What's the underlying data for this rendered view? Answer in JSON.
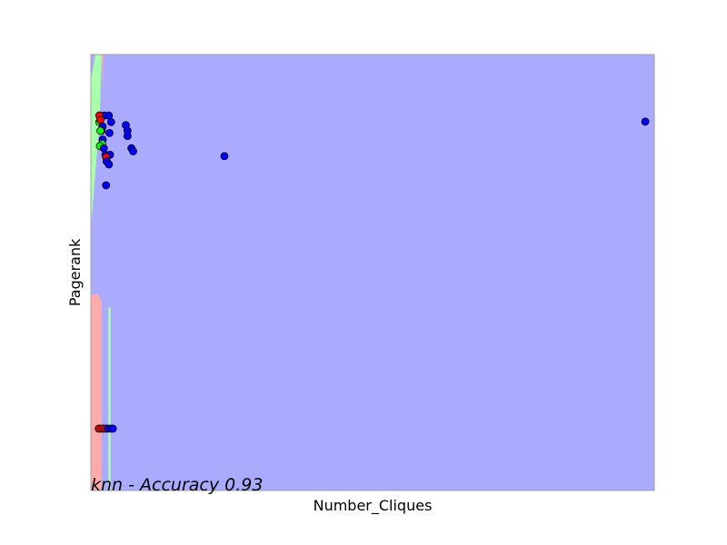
{
  "chart_data": {
    "type": "scatter",
    "title": "",
    "xlabel": "Number_Cliques",
    "ylabel": "Pagerank",
    "annotation": "knn - Accuracy 0.93",
    "xlim": [
      0,
      100
    ],
    "ylim": [
      0,
      100
    ],
    "ticks_visible": false,
    "grid": false,
    "legend": "none",
    "class_colors": {
      "red": {
        "region": "#ffaaaa",
        "point": "#ff0000"
      },
      "green": {
        "region": "#aaffaa",
        "point": "#00ff00"
      },
      "blue": {
        "region": "#aaaaff",
        "point": "#0000ff"
      }
    },
    "regions": [
      {
        "class": "blue",
        "polygon": [
          [
            0,
            0
          ],
          [
            100,
            0
          ],
          [
            100,
            100
          ],
          [
            0,
            100
          ]
        ]
      },
      {
        "class": "green",
        "polygon": [
          [
            0.8,
            100
          ],
          [
            1.9,
            100
          ],
          [
            1.6,
            86
          ],
          [
            0,
            60
          ],
          [
            0,
            94
          ]
        ]
      },
      {
        "class": "red",
        "polygon": [
          [
            1.9,
            100
          ],
          [
            2.2,
            100
          ],
          [
            2.1,
            91
          ]
        ]
      },
      {
        "class": "red",
        "polygon": [
          [
            0,
            45
          ],
          [
            1.3,
            45
          ],
          [
            1.9,
            43.3
          ],
          [
            1.9,
            0
          ],
          [
            0,
            0
          ]
        ]
      },
      {
        "class": "green",
        "polygon": [
          [
            3.1,
            42
          ],
          [
            3.5,
            42
          ],
          [
            3.5,
            0
          ],
          [
            3.1,
            0
          ]
        ]
      }
    ],
    "points": [
      {
        "x": 1.6,
        "y": 86,
        "class": "blue"
      },
      {
        "x": 2.4,
        "y": 86,
        "class": "blue"
      },
      {
        "x": 3.2,
        "y": 86,
        "class": "blue"
      },
      {
        "x": 1.5,
        "y": 86,
        "class": "red"
      },
      {
        "x": 1.5,
        "y": 84.5,
        "class": "green"
      },
      {
        "x": 1.7,
        "y": 85,
        "class": "red"
      },
      {
        "x": 3.6,
        "y": 84.5,
        "class": "blue"
      },
      {
        "x": 2.1,
        "y": 83.5,
        "class": "blue"
      },
      {
        "x": 1.9,
        "y": 82.5,
        "class": "blue"
      },
      {
        "x": 1.7,
        "y": 82.5,
        "class": "green"
      },
      {
        "x": 3.3,
        "y": 82,
        "class": "blue"
      },
      {
        "x": 2.1,
        "y": 80.5,
        "class": "blue"
      },
      {
        "x": 2.0,
        "y": 79.5,
        "class": "green"
      },
      {
        "x": 1.6,
        "y": 79,
        "class": "green"
      },
      {
        "x": 2.3,
        "y": 78.5,
        "class": "blue"
      },
      {
        "x": 2.6,
        "y": 77,
        "class": "blue"
      },
      {
        "x": 3.4,
        "y": 77,
        "class": "blue"
      },
      {
        "x": 2.7,
        "y": 76.5,
        "class": "red"
      },
      {
        "x": 2.8,
        "y": 75.5,
        "class": "blue"
      },
      {
        "x": 3.2,
        "y": 74.8,
        "class": "blue"
      },
      {
        "x": 6.2,
        "y": 83.8,
        "class": "blue"
      },
      {
        "x": 6.5,
        "y": 82.5,
        "class": "blue"
      },
      {
        "x": 6.5,
        "y": 81.3,
        "class": "blue"
      },
      {
        "x": 7.2,
        "y": 78.5,
        "class": "blue"
      },
      {
        "x": 7.5,
        "y": 77.8,
        "class": "blue"
      },
      {
        "x": 23.7,
        "y": 76.7,
        "class": "blue"
      },
      {
        "x": 2.7,
        "y": 70,
        "class": "blue"
      },
      {
        "x": 98.4,
        "y": 84.6,
        "class": "blue"
      },
      {
        "x": 1.4,
        "y": 14.2,
        "class": "red"
      },
      {
        "x": 1.8,
        "y": 14.2,
        "class": "red"
      },
      {
        "x": 2.2,
        "y": 14.2,
        "class": "red"
      },
      {
        "x": 2.6,
        "y": 14.2,
        "class": "red"
      },
      {
        "x": 3.0,
        "y": 14.2,
        "class": "blue"
      },
      {
        "x": 3.5,
        "y": 14.2,
        "class": "blue"
      },
      {
        "x": 3.9,
        "y": 14.2,
        "class": "blue"
      }
    ]
  }
}
